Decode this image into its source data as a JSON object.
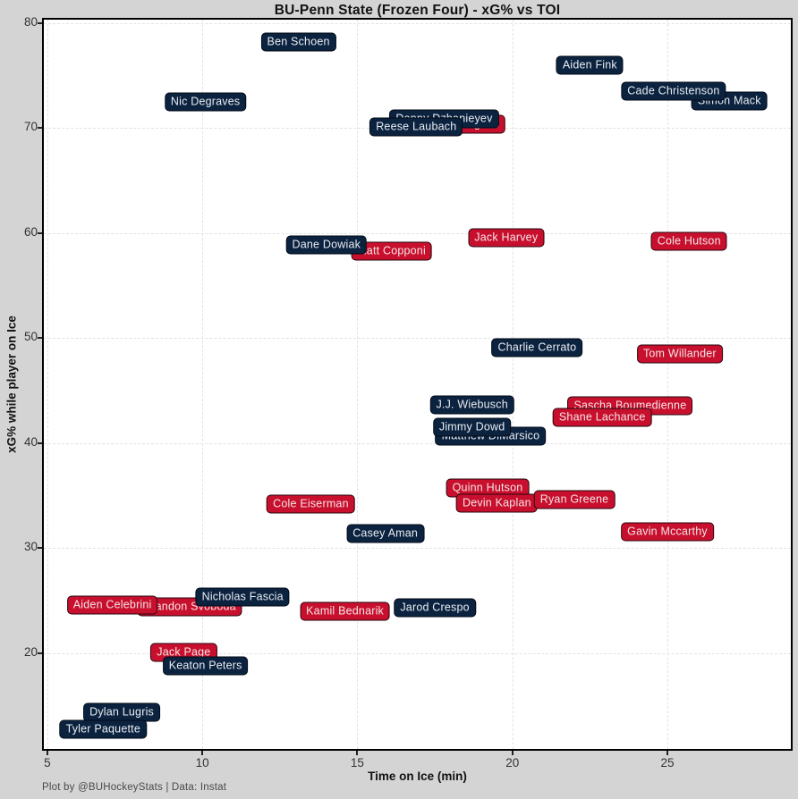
{
  "page": {
    "background": "#d4d4d4",
    "plot_background": "#ffffff"
  },
  "chart_data": {
    "type": "scatter",
    "title": "BU-Penn State (Frozen Four) - xG% vs TOI",
    "xlabel": "Time on Ice (min)",
    "ylabel": "xG% while player on Ice",
    "footer": "Plot by @BUHockeyStats | Data: Instat",
    "xlim": [
      4.83,
      29.04
    ],
    "ylim": [
      10.72,
      80.51
    ],
    "x_ticks": [
      5,
      10,
      15,
      20,
      25
    ],
    "y_ticks": [
      20,
      30,
      40,
      50,
      60,
      70,
      80
    ],
    "grid": "dashed-both-axes",
    "legend_position": "none",
    "point_style": "name-in-rounded-box",
    "teams": {
      "BU": {
        "fill": "#C8102E",
        "edge": "#26060c",
        "text": "#f4e6e6"
      },
      "PSU": {
        "fill": "#0C2340",
        "edge": "#020a14",
        "text": "#e9edf2"
      }
    },
    "points": [
      {
        "name": "Jack Hughes",
        "team": "BU",
        "x": 18.5,
        "y": 70.4
      },
      {
        "name": "Danny Dzhanieyev",
        "team": "PSU",
        "x": 17.8,
        "y": 70.9
      },
      {
        "name": "Reese Laubach",
        "team": "PSU",
        "x": 16.9,
        "y": 70.1
      },
      {
        "name": "Ben Schoen",
        "team": "PSU",
        "x": 13.1,
        "y": 78.2
      },
      {
        "name": "Aiden Fink",
        "team": "PSU",
        "x": 22.5,
        "y": 76.0
      },
      {
        "name": "Nic Degraves",
        "team": "PSU",
        "x": 10.1,
        "y": 72.5
      },
      {
        "name": "Simon Mack",
        "team": "PSU",
        "x": 27.0,
        "y": 72.6
      },
      {
        "name": "Cade Christenson",
        "team": "PSU",
        "x": 25.2,
        "y": 73.5
      },
      {
        "name": "Matt Copponi",
        "team": "BU",
        "x": 16.1,
        "y": 58.3
      },
      {
        "name": "Dane Dowiak",
        "team": "PSU",
        "x": 14.0,
        "y": 58.9
      },
      {
        "name": "Jack Harvey",
        "team": "BU",
        "x": 19.8,
        "y": 59.6
      },
      {
        "name": "Cole Hutson",
        "team": "BU",
        "x": 25.7,
        "y": 59.2
      },
      {
        "name": "Charlie Cerrato",
        "team": "PSU",
        "x": 20.8,
        "y": 49.1
      },
      {
        "name": "Tom Willander",
        "team": "BU",
        "x": 25.4,
        "y": 48.5
      },
      {
        "name": "J.J. Wiebusch",
        "team": "PSU",
        "x": 18.7,
        "y": 43.7
      },
      {
        "name": "Sascha Boumedienne",
        "team": "BU",
        "x": 23.8,
        "y": 43.6
      },
      {
        "name": "Shane Lachance",
        "team": "BU",
        "x": 22.9,
        "y": 42.5
      },
      {
        "name": "Matthew DiMarsico",
        "team": "PSU",
        "x": 19.3,
        "y": 40.7
      },
      {
        "name": "Jimmy Dowd",
        "team": "PSU",
        "x": 18.7,
        "y": 41.5
      },
      {
        "name": "Quinn Hutson",
        "team": "BU",
        "x": 19.2,
        "y": 35.7
      },
      {
        "name": "Devin Kaplan",
        "team": "BU",
        "x": 19.5,
        "y": 34.3
      },
      {
        "name": "Ryan Greene",
        "team": "BU",
        "x": 22.0,
        "y": 34.6
      },
      {
        "name": "Cole Eiserman",
        "team": "BU",
        "x": 13.5,
        "y": 34.2
      },
      {
        "name": "Casey Aman",
        "team": "PSU",
        "x": 15.9,
        "y": 31.4
      },
      {
        "name": "Gavin Mccarthy",
        "team": "BU",
        "x": 25.0,
        "y": 31.6
      },
      {
        "name": "Brandon Svoboda",
        "team": "BU",
        "x": 9.6,
        "y": 24.4
      },
      {
        "name": "Nicholas Fascia",
        "team": "PSU",
        "x": 11.3,
        "y": 25.4
      },
      {
        "name": "Aiden Celebrini",
        "team": "BU",
        "x": 7.1,
        "y": 24.6
      },
      {
        "name": "Kamil Bednarik",
        "team": "BU",
        "x": 14.6,
        "y": 24.0
      },
      {
        "name": "Jarod Crespo",
        "team": "PSU",
        "x": 17.5,
        "y": 24.3
      },
      {
        "name": "Jack Page",
        "team": "BU",
        "x": 9.4,
        "y": 20.1
      },
      {
        "name": "Keaton Peters",
        "team": "PSU",
        "x": 10.1,
        "y": 18.8
      },
      {
        "name": "Dylan Lugris",
        "team": "PSU",
        "x": 7.4,
        "y": 14.4
      },
      {
        "name": "Tyler Paquette",
        "team": "PSU",
        "x": 6.8,
        "y": 12.8
      }
    ]
  }
}
